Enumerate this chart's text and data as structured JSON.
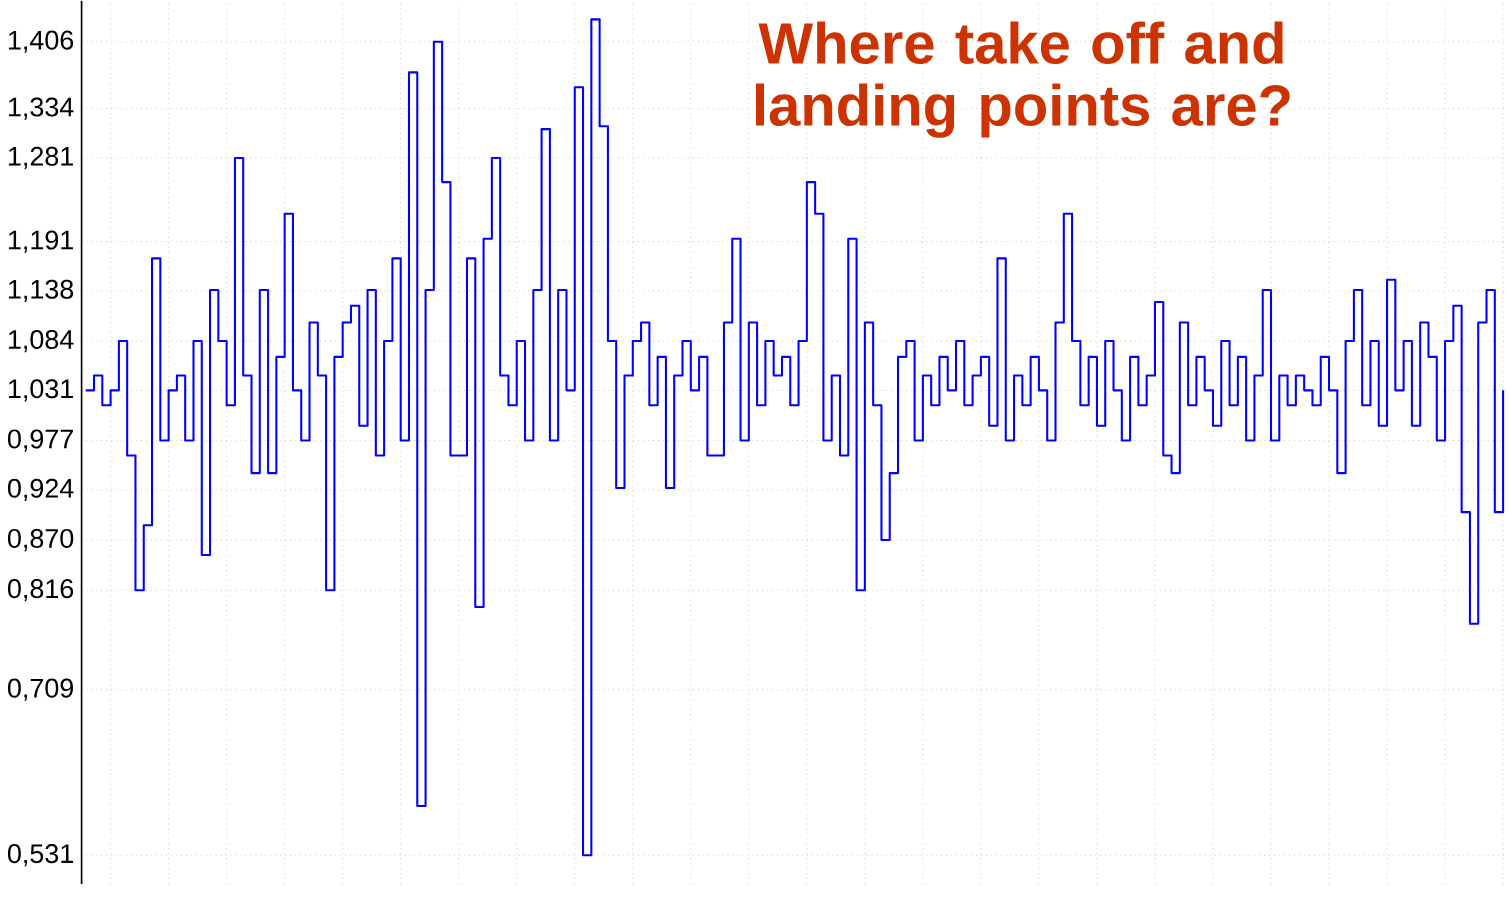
{
  "chart_data": {
    "type": "step",
    "title": "Where take off and landing points are?",
    "categories": [
      null,
      null,
      null,
      null,
      null,
      null,
      null,
      null,
      null,
      null,
      null,
      null,
      null,
      null,
      null,
      null,
      null,
      null,
      null,
      null,
      null,
      null,
      null,
      null,
      null,
      null,
      null,
      null,
      null,
      null,
      null,
      null,
      null,
      null,
      null,
      null,
      null,
      null,
      null,
      null,
      null,
      null,
      null,
      null,
      null,
      null,
      null,
      null,
      null,
      null,
      null,
      null,
      null,
      null,
      null,
      null,
      null,
      null,
      null,
      null,
      null,
      null,
      null,
      null,
      null,
      null,
      null,
      null,
      null,
      null,
      null,
      null,
      null,
      null,
      null,
      null,
      null,
      null,
      null,
      null,
      null,
      null,
      null,
      null,
      null,
      null,
      null,
      null,
      null,
      null,
      null,
      null,
      null,
      null,
      null,
      null,
      null,
      null,
      null,
      null,
      null,
      null,
      null,
      null,
      null,
      null,
      null,
      null,
      null,
      null,
      null,
      null,
      null,
      null,
      null,
      null,
      null,
      null,
      null,
      null,
      null,
      null,
      null,
      null,
      null,
      null,
      null,
      null,
      null,
      null,
      null,
      null,
      null,
      null,
      null,
      null,
      null,
      null,
      null,
      null,
      null,
      null,
      null,
      null,
      null,
      null,
      null,
      null,
      null,
      null,
      null,
      null,
      null,
      null,
      null,
      null,
      null,
      null,
      null,
      null,
      null,
      null,
      null,
      null,
      null,
      null,
      null,
      null,
      null,
      null,
      null,
      null
    ],
    "series": [
      {
        "color": "#0000ff",
        "values": [
          1.031,
          1.047,
          1.015,
          1.031,
          1.084,
          0.961,
          0.816,
          0.886,
          1.173,
          0.977,
          1.031,
          1.047,
          0.977,
          1.084,
          0.854,
          1.139,
          1.084,
          1.015,
          1.281,
          1.047,
          0.942,
          1.139,
          0.942,
          1.067,
          1.221,
          1.031,
          0.977,
          1.104,
          1.047,
          0.816,
          1.067,
          1.104,
          1.122,
          0.993,
          1.139,
          0.961,
          1.084,
          1.173,
          0.977,
          1.373,
          0.584,
          1.139,
          1.406,
          1.255,
          0.961,
          0.961,
          1.173,
          0.798,
          1.194,
          1.281,
          1.047,
          1.015,
          1.084,
          0.977,
          1.139,
          1.312,
          0.977,
          1.139,
          1.031,
          1.357,
          0.531,
          1.43,
          1.315,
          1.084,
          0.926,
          1.047,
          1.084,
          1.104,
          1.015,
          1.067,
          0.926,
          1.047,
          1.084,
          1.031,
          1.067,
          0.961,
          0.961,
          1.104,
          1.194,
          0.977,
          1.104,
          1.015,
          1.084,
          1.047,
          1.067,
          1.015,
          1.084,
          1.255,
          1.221,
          0.977,
          1.047,
          0.961,
          1.194,
          0.816,
          1.104,
          1.015,
          0.87,
          0.942,
          1.067,
          1.084,
          0.977,
          1.047,
          1.015,
          1.067,
          1.031,
          1.084,
          1.015,
          1.047,
          1.067,
          0.993,
          1.173,
          0.977,
          1.047,
          1.015,
          1.067,
          1.031,
          0.977,
          1.104,
          1.221,
          1.084,
          1.015,
          1.067,
          0.993,
          1.084,
          1.031,
          0.977,
          1.067,
          1.015,
          1.047,
          1.126,
          0.961,
          0.942,
          1.104,
          1.015,
          1.067,
          1.031,
          0.993,
          1.084,
          1.015,
          1.067,
          0.977,
          1.047,
          1.139,
          0.977,
          1.047,
          1.015,
          1.047,
          1.031,
          1.015,
          1.067,
          1.031,
          0.942,
          1.084,
          1.139,
          1.015,
          1.084,
          0.993,
          1.15,
          1.031,
          1.084,
          0.993,
          1.104,
          1.067,
          0.977,
          1.084,
          1.122,
          0.9,
          0.78,
          1.104,
          1.139,
          0.9,
          1.031
        ]
      }
    ],
    "ylim": [
      0.5,
      1.45
    ],
    "yticks": [
      {
        "value": 0.531,
        "label": "0,531"
      },
      {
        "value": 0.709,
        "label": "0,709"
      },
      {
        "value": 0.816,
        "label": "0,816"
      },
      {
        "value": 0.87,
        "label": "0,870"
      },
      {
        "value": 0.924,
        "label": "0,924"
      },
      {
        "value": 0.977,
        "label": "0,977"
      },
      {
        "value": 1.031,
        "label": "1,031"
      },
      {
        "value": 1.084,
        "label": "1,084"
      },
      {
        "value": 1.138,
        "label": "1,138"
      },
      {
        "value": 1.191,
        "label": "1,191"
      },
      {
        "value": 1.281,
        "label": "1,281"
      },
      {
        "value": 1.334,
        "label": "1,334"
      },
      {
        "value": 1.406,
        "label": "1,406"
      }
    ],
    "grid": true
  }
}
